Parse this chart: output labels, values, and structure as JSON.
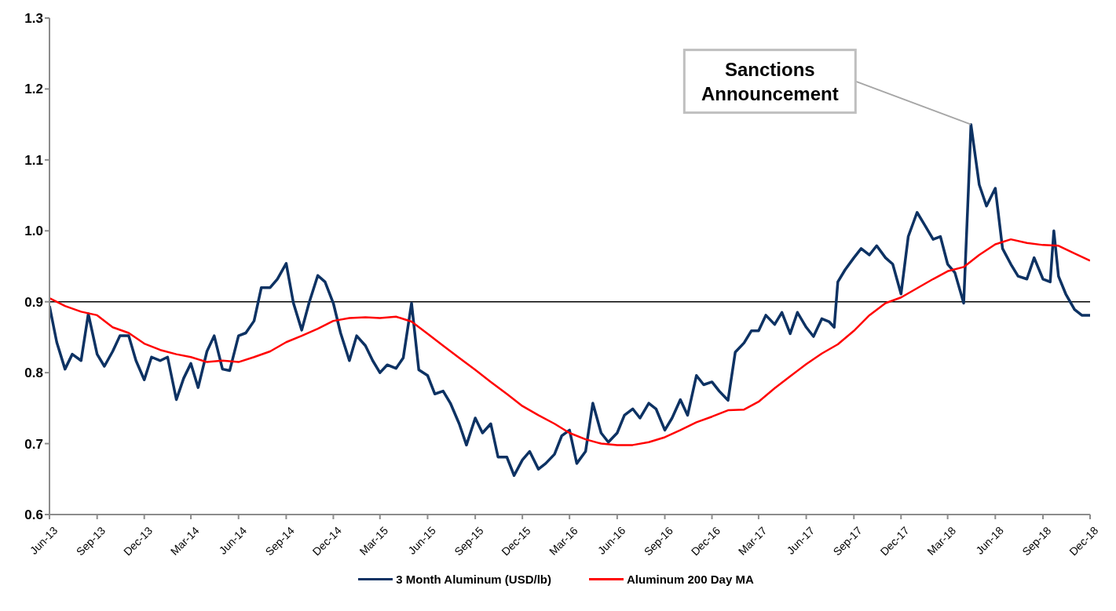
{
  "chart_data": {
    "type": "line",
    "legend": "bottom",
    "grid": false,
    "marker": "none",
    "line_style": "solid",
    "xlim": [
      "2013-06",
      "2018-12"
    ],
    "xticks": [
      {
        "value": "2013-06",
        "label": "Jun-13"
      },
      {
        "value": "2013-09",
        "label": "Sep-13"
      },
      {
        "value": "2013-12",
        "label": "Dec-13"
      },
      {
        "value": "2014-03",
        "label": "Mar-14"
      },
      {
        "value": "2014-06",
        "label": "Jun-14"
      },
      {
        "value": "2014-09",
        "label": "Sep-14"
      },
      {
        "value": "2014-12",
        "label": "Dec-14"
      },
      {
        "value": "2015-03",
        "label": "Mar-15"
      },
      {
        "value": "2015-06",
        "label": "Jun-15"
      },
      {
        "value": "2015-09",
        "label": "Sep-15"
      },
      {
        "value": "2015-12",
        "label": "Dec-15"
      },
      {
        "value": "2016-03",
        "label": "Mar-16"
      },
      {
        "value": "2016-06",
        "label": "Jun-16"
      },
      {
        "value": "2016-09",
        "label": "Sep-16"
      },
      {
        "value": "2016-12",
        "label": "Dec-16"
      },
      {
        "value": "2017-03",
        "label": "Mar-17"
      },
      {
        "value": "2017-06",
        "label": "Jun-17"
      },
      {
        "value": "2017-09",
        "label": "Sep-17"
      },
      {
        "value": "2017-12",
        "label": "Dec-17"
      },
      {
        "value": "2018-03",
        "label": "Mar-18"
      },
      {
        "value": "2018-06",
        "label": "Jun-18"
      },
      {
        "value": "2018-09",
        "label": "Sep-18"
      },
      {
        "value": "2018-12",
        "label": "Dec-18"
      }
    ],
    "ylim": [
      0.6,
      1.3
    ],
    "yticks": [
      0.6,
      0.7,
      0.8,
      0.9,
      {
        "value": 1,
        "label": "1.0"
      },
      1.1,
      1.2,
      1.3
    ],
    "ref_lines": [
      {
        "axis": "y",
        "value": 0.9,
        "color": "#000000"
      }
    ],
    "annotations": [
      {
        "text": "Sanctions Announcement",
        "x": "2018-04-15",
        "y": 1.15
      }
    ],
    "series": [
      {
        "name": "3 Month Aluminum (USD/lb)",
        "color": "#0d3263",
        "x": [
          "2013-06-01",
          "2013-06-15",
          "2013-07-01",
          "2013-07-15",
          "2013-08-01",
          "2013-08-15",
          "2013-09-01",
          "2013-09-15",
          "2013-10-01",
          "2013-10-15",
          "2013-11-01",
          "2013-11-15",
          "2013-12-01",
          "2013-12-15",
          "2014-01-01",
          "2014-01-15",
          "2014-02-01",
          "2014-02-15",
          "2014-03-01",
          "2014-03-15",
          "2014-04-01",
          "2014-04-15",
          "2014-05-01",
          "2014-05-15",
          "2014-06-01",
          "2014-06-15",
          "2014-07-01",
          "2014-07-15",
          "2014-08-01",
          "2014-08-15",
          "2014-09-01",
          "2014-09-15",
          "2014-10-01",
          "2014-10-15",
          "2014-11-01",
          "2014-11-15",
          "2014-12-01",
          "2014-12-15",
          "2015-01-01",
          "2015-01-15",
          "2015-02-01",
          "2015-02-15",
          "2015-03-01",
          "2015-03-15",
          "2015-04-01",
          "2015-04-15",
          "2015-05-01",
          "2015-05-15",
          "2015-06-01",
          "2015-06-15",
          "2015-07-01",
          "2015-07-15",
          "2015-08-01",
          "2015-08-15",
          "2015-09-01",
          "2015-09-15",
          "2015-10-01",
          "2015-10-15",
          "2015-11-01",
          "2015-11-15",
          "2015-12-01",
          "2015-12-15",
          "2016-01-01",
          "2016-01-15",
          "2016-02-01",
          "2016-02-15",
          "2016-03-01",
          "2016-03-15",
          "2016-04-01",
          "2016-04-15",
          "2016-05-01",
          "2016-05-15",
          "2016-06-01",
          "2016-06-15",
          "2016-07-01",
          "2016-07-15",
          "2016-08-01",
          "2016-08-15",
          "2016-09-01",
          "2016-09-15",
          "2016-10-01",
          "2016-10-15",
          "2016-11-01",
          "2016-11-15",
          "2016-12-01",
          "2016-12-15",
          "2017-01-01",
          "2017-01-15",
          "2017-02-01",
          "2017-02-15",
          "2017-03-01",
          "2017-03-15",
          "2017-04-01",
          "2017-04-15",
          "2017-05-01",
          "2017-05-15",
          "2017-06-01",
          "2017-06-15",
          "2017-07-01",
          "2017-07-15",
          "2017-07-25",
          "2017-08-01",
          "2017-08-15",
          "2017-09-01",
          "2017-09-15",
          "2017-10-01",
          "2017-10-15",
          "2017-11-01",
          "2017-11-15",
          "2017-12-01",
          "2017-12-15",
          "2018-01-01",
          "2018-01-15",
          "2018-02-01",
          "2018-02-15",
          "2018-03-01",
          "2018-03-15",
          "2018-04-01",
          "2018-04-10",
          "2018-04-15",
          "2018-05-01",
          "2018-05-15",
          "2018-06-01",
          "2018-06-15",
          "2018-07-01",
          "2018-07-15",
          "2018-08-01",
          "2018-08-15",
          "2018-09-01",
          "2018-09-15",
          "2018-09-22",
          "2018-10-01",
          "2018-10-15",
          "2018-11-01",
          "2018-11-15",
          "2018-12-01"
        ],
        "values": [
          0.894,
          0.843,
          0.805,
          0.826,
          0.817,
          0.883,
          0.826,
          0.809,
          0.83,
          0.852,
          0.852,
          0.817,
          0.79,
          0.822,
          0.817,
          0.822,
          0.762,
          0.792,
          0.813,
          0.779,
          0.83,
          0.852,
          0.805,
          0.803,
          0.852,
          0.856,
          0.873,
          0.92,
          0.92,
          0.932,
          0.954,
          0.898,
          0.86,
          0.898,
          0.937,
          0.928,
          0.898,
          0.856,
          0.817,
          0.852,
          0.838,
          0.817,
          0.8,
          0.811,
          0.806,
          0.821,
          0.898,
          0.804,
          0.796,
          0.77,
          0.774,
          0.757,
          0.728,
          0.698,
          0.736,
          0.715,
          0.728,
          0.681,
          0.681,
          0.655,
          0.677,
          0.689,
          0.664,
          0.672,
          0.685,
          0.711,
          0.719,
          0.672,
          0.689,
          0.757,
          0.715,
          0.702,
          0.715,
          0.74,
          0.749,
          0.736,
          0.757,
          0.749,
          0.719,
          0.736,
          0.762,
          0.74,
          0.796,
          0.783,
          0.787,
          0.774,
          0.761,
          0.829,
          0.842,
          0.859,
          0.859,
          0.881,
          0.868,
          0.885,
          0.855,
          0.885,
          0.864,
          0.851,
          0.876,
          0.872,
          0.864,
          0.928,
          0.945,
          0.962,
          0.975,
          0.966,
          0.979,
          0.962,
          0.953,
          0.911,
          0.992,
          1.026,
          1.009,
          0.988,
          0.992,
          0.953,
          0.941,
          0.898,
          1.056,
          1.15,
          1.065,
          1.035,
          1.06,
          0.975,
          0.953,
          0.936,
          0.932,
          0.962,
          0.932,
          0.928,
          1.0,
          0.936,
          0.911,
          0.889,
          0.881,
          0.881
        ]
      },
      {
        "name": "Aluminum 200 Day MA",
        "color": "#ff0000",
        "x": [
          "2013-06-01",
          "2013-07-01",
          "2013-08-01",
          "2013-09-01",
          "2013-10-01",
          "2013-11-01",
          "2013-12-01",
          "2014-01-01",
          "2014-02-01",
          "2014-03-01",
          "2014-04-01",
          "2014-05-01",
          "2014-06-01",
          "2014-07-01",
          "2014-08-01",
          "2014-09-01",
          "2014-10-01",
          "2014-11-01",
          "2014-12-01",
          "2015-01-01",
          "2015-02-01",
          "2015-03-01",
          "2015-04-01",
          "2015-05-01",
          "2015-06-01",
          "2015-07-01",
          "2015-08-01",
          "2015-09-01",
          "2015-10-01",
          "2015-11-01",
          "2015-12-01",
          "2016-01-01",
          "2016-02-01",
          "2016-03-01",
          "2016-04-01",
          "2016-05-01",
          "2016-06-01",
          "2016-07-01",
          "2016-08-01",
          "2016-09-01",
          "2016-10-01",
          "2016-11-01",
          "2016-12-01",
          "2017-01-01",
          "2017-02-01",
          "2017-03-01",
          "2017-04-01",
          "2017-05-01",
          "2017-06-01",
          "2017-07-01",
          "2017-08-01",
          "2017-09-01",
          "2017-10-01",
          "2017-11-01",
          "2017-12-01",
          "2018-01-01",
          "2018-02-01",
          "2018-03-01",
          "2018-04-01",
          "2018-05-01",
          "2018-06-01",
          "2018-07-01",
          "2018-08-01",
          "2018-09-01",
          "2018-10-01",
          "2018-11-01",
          "2018-12-01"
        ],
        "values": [
          0.905,
          0.894,
          0.886,
          0.881,
          0.864,
          0.856,
          0.841,
          0.832,
          0.826,
          0.822,
          0.815,
          0.817,
          0.815,
          0.822,
          0.83,
          0.843,
          0.852,
          0.862,
          0.873,
          0.877,
          0.878,
          0.877,
          0.879,
          0.872,
          0.855,
          0.838,
          0.821,
          0.804,
          0.787,
          0.77,
          0.753,
          0.74,
          0.728,
          0.715,
          0.706,
          0.7,
          0.698,
          0.698,
          0.702,
          0.709,
          0.719,
          0.73,
          0.738,
          0.747,
          0.748,
          0.759,
          0.778,
          0.795,
          0.812,
          0.827,
          0.84,
          0.859,
          0.881,
          0.898,
          0.906,
          0.919,
          0.932,
          0.943,
          0.949,
          0.966,
          0.981,
          0.988,
          0.983,
          0.98,
          0.979,
          0.968,
          0.958
        ]
      }
    ]
  }
}
